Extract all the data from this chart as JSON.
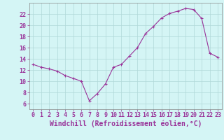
{
  "hours": [
    0,
    1,
    2,
    3,
    4,
    5,
    6,
    7,
    8,
    9,
    10,
    11,
    12,
    13,
    14,
    15,
    16,
    17,
    18,
    19,
    20,
    21,
    22,
    23
  ],
  "values": [
    13.0,
    12.5,
    12.2,
    11.8,
    11.0,
    10.5,
    10.0,
    6.5,
    7.8,
    9.5,
    12.5,
    13.0,
    14.5,
    16.0,
    18.5,
    19.8,
    21.3,
    22.1,
    22.5,
    23.0,
    22.8,
    21.2,
    15.0,
    14.3
  ],
  "xlabel": "Windchill (Refroidissement éolien,°C)",
  "ylim": [
    5,
    24
  ],
  "xlim": [
    -0.5,
    23.5
  ],
  "yticks": [
    6,
    8,
    10,
    12,
    14,
    16,
    18,
    20,
    22
  ],
  "xticks": [
    0,
    1,
    2,
    3,
    4,
    5,
    6,
    7,
    8,
    9,
    10,
    11,
    12,
    13,
    14,
    15,
    16,
    17,
    18,
    19,
    20,
    21,
    22,
    23
  ],
  "line_color": "#993399",
  "marker_color": "#993399",
  "bg_color": "#d4f5f5",
  "grid_color": "#b0d8d8",
  "axis_color": "#888888",
  "tick_label_color": "#993399",
  "xlabel_color": "#993399",
  "xlabel_fontsize": 7.0,
  "tick_fontsize": 6.0,
  "line_width": 0.8,
  "marker_size": 3.0
}
